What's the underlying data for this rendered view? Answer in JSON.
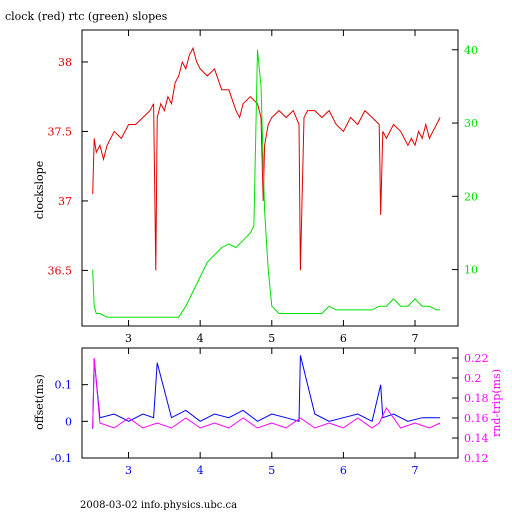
{
  "title": "clock (red) rtc (green) slopes",
  "footer": "2008-03-02 info.physics.ubc.ca",
  "colors": {
    "clock": "#e00000",
    "rtc": "#00e000",
    "offset": "#0000ff",
    "rndtrip": "#ff00ff",
    "axis": "#000000"
  },
  "chart_data": [
    {
      "type": "line",
      "ylabel": "clockslope",
      "y2label": "",
      "xlim": [
        2.35,
        7.6
      ],
      "ylim": [
        36.1,
        38.23
      ],
      "y2lim": [
        2.3,
        42.7
      ],
      "x_ticks": [
        "3",
        "4",
        "5",
        "6",
        "7"
      ],
      "y_ticks": [
        "36.5",
        "37",
        "37.5",
        "38"
      ],
      "y2_ticks": [
        "10",
        "20",
        "30",
        "40"
      ],
      "series": [
        {
          "axis": "left",
          "x": [
            2.5,
            2.52,
            2.55,
            2.6,
            2.65,
            2.7,
            2.8,
            2.9,
            3.0,
            3.1,
            3.2,
            3.3,
            3.35,
            3.38,
            3.4,
            3.45,
            3.5,
            3.55,
            3.6,
            3.65,
            3.7,
            3.75,
            3.8,
            3.85,
            3.9,
            3.95,
            4.0,
            4.1,
            4.2,
            4.3,
            4.4,
            4.5,
            4.55,
            4.6,
            4.7,
            4.8,
            4.85,
            4.88,
            4.9,
            4.95,
            5.0,
            5.1,
            5.2,
            5.3,
            5.38,
            5.4,
            5.45,
            5.5,
            5.6,
            5.7,
            5.8,
            5.9,
            6.0,
            6.1,
            6.2,
            6.3,
            6.4,
            6.5,
            6.52,
            6.55,
            6.6,
            6.7,
            6.8,
            6.85,
            6.9,
            6.95,
            7.0,
            7.05,
            7.1,
            7.15,
            7.2,
            7.25,
            7.3,
            7.35
          ],
          "values": [
            37.05,
            37.45,
            37.35,
            37.4,
            37.3,
            37.4,
            37.5,
            37.45,
            37.55,
            37.55,
            37.6,
            37.65,
            37.7,
            36.5,
            37.6,
            37.7,
            37.65,
            37.75,
            37.7,
            37.85,
            37.9,
            38.0,
            37.95,
            38.05,
            38.1,
            38.0,
            37.95,
            37.9,
            37.95,
            37.8,
            37.8,
            37.65,
            37.6,
            37.7,
            37.75,
            37.7,
            37.6,
            37.0,
            37.4,
            37.55,
            37.6,
            37.65,
            37.6,
            37.65,
            37.55,
            36.5,
            37.6,
            37.65,
            37.65,
            37.6,
            37.65,
            37.55,
            37.5,
            37.6,
            37.55,
            37.65,
            37.6,
            37.55,
            36.9,
            37.5,
            37.45,
            37.55,
            37.5,
            37.45,
            37.4,
            37.45,
            37.4,
            37.5,
            37.45,
            37.55,
            37.45,
            37.5,
            37.55,
            37.6
          ]
        },
        {
          "axis": "right",
          "x": [
            2.5,
            2.52,
            2.55,
            2.6,
            2.7,
            2.8,
            2.9,
            3.0,
            3.1,
            3.2,
            3.3,
            3.4,
            3.5,
            3.6,
            3.7,
            3.8,
            3.9,
            4.0,
            4.1,
            4.2,
            4.3,
            4.4,
            4.5,
            4.6,
            4.7,
            4.75,
            4.8,
            4.85,
            4.9,
            4.95,
            5.0,
            5.1,
            5.2,
            5.3,
            5.4,
            5.5,
            5.6,
            5.7,
            5.8,
            5.9,
            6.0,
            6.1,
            6.2,
            6.3,
            6.4,
            6.5,
            6.6,
            6.7,
            6.8,
            6.9,
            7.0,
            7.1,
            7.2,
            7.3,
            7.35
          ],
          "values": [
            10,
            5,
            4,
            4,
            3.5,
            3.5,
            3.5,
            3.5,
            3.5,
            3.5,
            3.5,
            3.5,
            3.5,
            3.5,
            3.5,
            5,
            7,
            9,
            11,
            12,
            13,
            13.5,
            13,
            14,
            15,
            16,
            40,
            35,
            18,
            10,
            5,
            4,
            4,
            4,
            4,
            4,
            4,
            4,
            5,
            4.5,
            4.5,
            4.5,
            4.5,
            4.5,
            4.5,
            5,
            5,
            6,
            5,
            5,
            6,
            5,
            5,
            4.5,
            4.5
          ]
        }
      ]
    },
    {
      "type": "line",
      "ylabel": "offset(ms)",
      "y2label": "rnd-trip(ms)",
      "xlim": [
        2.35,
        7.6
      ],
      "ylim": [
        -0.1,
        0.2
      ],
      "y2lim": [
        0.12,
        0.23
      ],
      "x_ticks": [
        "3",
        "4",
        "5",
        "6",
        "7"
      ],
      "y_ticks": [
        "-0.1",
        "0",
        "0.1"
      ],
      "y2_ticks": [
        "0.12",
        "0.14",
        "0.16",
        "0.18",
        "0.2",
        "0.22"
      ],
      "series": [
        {
          "axis": "left",
          "x": [
            2.5,
            2.52,
            2.6,
            2.8,
            3.0,
            3.2,
            3.35,
            3.4,
            3.6,
            3.8,
            4.0,
            4.2,
            4.4,
            4.6,
            4.8,
            5.0,
            5.2,
            5.38,
            5.4,
            5.6,
            5.8,
            6.0,
            6.2,
            6.4,
            6.52,
            6.55,
            6.7,
            6.9,
            7.1,
            7.35
          ],
          "values": [
            -0.02,
            0.17,
            0.01,
            0.02,
            0.0,
            0.02,
            0.01,
            0.16,
            0.01,
            0.03,
            0.0,
            0.02,
            0.01,
            0.03,
            0.0,
            0.02,
            0.01,
            0.0,
            0.18,
            0.02,
            0.0,
            0.01,
            0.02,
            0.0,
            0.1,
            0.01,
            0.02,
            0.0,
            0.01,
            0.01
          ]
        },
        {
          "axis": "right",
          "x": [
            2.5,
            2.52,
            2.6,
            2.8,
            3.0,
            3.2,
            3.4,
            3.6,
            3.8,
            4.0,
            4.2,
            4.4,
            4.6,
            4.8,
            5.0,
            5.2,
            5.4,
            5.6,
            5.8,
            6.0,
            6.2,
            6.4,
            6.5,
            6.6,
            6.8,
            7.0,
            7.2,
            7.35
          ],
          "values": [
            0.15,
            0.22,
            0.155,
            0.15,
            0.16,
            0.15,
            0.155,
            0.15,
            0.16,
            0.15,
            0.155,
            0.15,
            0.16,
            0.15,
            0.155,
            0.15,
            0.16,
            0.15,
            0.155,
            0.15,
            0.16,
            0.15,
            0.155,
            0.17,
            0.15,
            0.155,
            0.15,
            0.155
          ]
        }
      ]
    }
  ]
}
